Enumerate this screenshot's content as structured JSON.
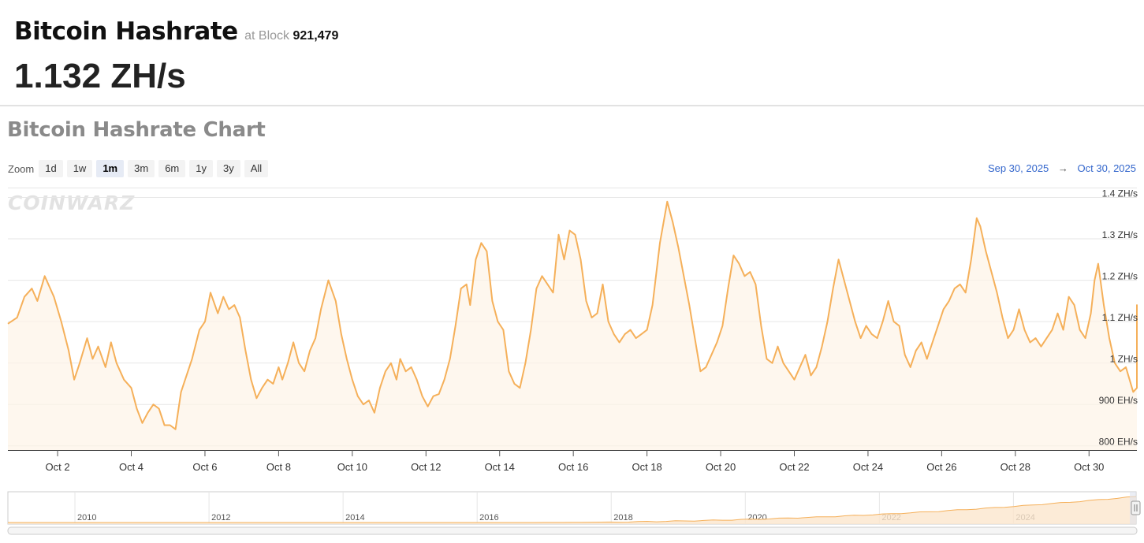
{
  "header": {
    "title": "Bitcoin Hashrate",
    "at_block_label": "at Block",
    "block_number": "921,479",
    "current_value": "1.132 ZH/s"
  },
  "chart_title": "Bitcoin Hashrate Chart",
  "zoom": {
    "label": "Zoom",
    "buttons": [
      "1d",
      "1w",
      "1m",
      "3m",
      "6m",
      "1y",
      "3y",
      "All"
    ],
    "active": "1m"
  },
  "date_range": {
    "from": "Sep 30, 2025",
    "arrow": "→",
    "to": "Oct 30, 2025"
  },
  "watermark": "COINWARZ",
  "colors": {
    "line": "#f5b05a",
    "fill": "#fdf3e7",
    "grid": "#e6e6e6",
    "range_text": "#3366cc"
  },
  "chart_data": {
    "type": "area",
    "title": "Bitcoin Hashrate Chart",
    "y_unit_labels": [
      "800 EH/s",
      "900 EH/s",
      "1 ZH/s",
      "1.1 ZH/s",
      "1.2 ZH/s",
      "1.3 ZH/s",
      "1.4 ZH/s"
    ],
    "y_ticks": [
      800,
      900,
      1000,
      1100,
      1200,
      1300,
      1400
    ],
    "ylim": [
      790,
      1420
    ],
    "x_labels": [
      "Oct 2",
      "Oct 4",
      "Oct 6",
      "Oct 8",
      "Oct 10",
      "Oct 12",
      "Oct 14",
      "Oct 16",
      "Oct 18",
      "Oct 20",
      "Oct 22",
      "Oct 24",
      "Oct 26",
      "Oct 28",
      "Oct 30"
    ],
    "x_label_days": [
      2,
      4,
      6,
      8,
      10,
      12,
      14,
      16,
      18,
      20,
      22,
      24,
      26,
      28,
      30
    ],
    "xlim_days": [
      0.65,
      31.3
    ],
    "series": [
      {
        "points": [
          [
            0.65,
            1095
          ],
          [
            0.9,
            1110
          ],
          [
            1.1,
            1160
          ],
          [
            1.3,
            1180
          ],
          [
            1.45,
            1150
          ],
          [
            1.65,
            1210
          ],
          [
            1.9,
            1160
          ],
          [
            2.1,
            1100
          ],
          [
            2.3,
            1030
          ],
          [
            2.45,
            960
          ],
          [
            2.6,
            1000
          ],
          [
            2.8,
            1060
          ],
          [
            2.95,
            1010
          ],
          [
            3.1,
            1040
          ],
          [
            3.3,
            990
          ],
          [
            3.45,
            1050
          ],
          [
            3.6,
            1000
          ],
          [
            3.8,
            960
          ],
          [
            4.0,
            940
          ],
          [
            4.15,
            890
          ],
          [
            4.3,
            855
          ],
          [
            4.45,
            880
          ],
          [
            4.6,
            900
          ],
          [
            4.75,
            890
          ],
          [
            4.9,
            850
          ],
          [
            5.05,
            850
          ],
          [
            5.2,
            840
          ],
          [
            5.35,
            930
          ],
          [
            5.5,
            970
          ],
          [
            5.65,
            1010
          ],
          [
            5.85,
            1080
          ],
          [
            6.0,
            1100
          ],
          [
            6.15,
            1170
          ],
          [
            6.35,
            1120
          ],
          [
            6.5,
            1160
          ],
          [
            6.65,
            1130
          ],
          [
            6.8,
            1140
          ],
          [
            6.95,
            1110
          ],
          [
            7.1,
            1030
          ],
          [
            7.25,
            960
          ],
          [
            7.4,
            915
          ],
          [
            7.55,
            940
          ],
          [
            7.7,
            960
          ],
          [
            7.85,
            950
          ],
          [
            8.0,
            990
          ],
          [
            8.1,
            960
          ],
          [
            8.25,
            1000
          ],
          [
            8.4,
            1050
          ],
          [
            8.55,
            1000
          ],
          [
            8.7,
            980
          ],
          [
            8.85,
            1030
          ],
          [
            9.0,
            1060
          ],
          [
            9.15,
            1130
          ],
          [
            9.35,
            1200
          ],
          [
            9.55,
            1150
          ],
          [
            9.7,
            1070
          ],
          [
            9.85,
            1010
          ],
          [
            10.0,
            960
          ],
          [
            10.15,
            920
          ],
          [
            10.3,
            900
          ],
          [
            10.45,
            910
          ],
          [
            10.6,
            880
          ],
          [
            10.75,
            940
          ],
          [
            10.9,
            980
          ],
          [
            11.05,
            1000
          ],
          [
            11.2,
            960
          ],
          [
            11.3,
            1010
          ],
          [
            11.45,
            980
          ],
          [
            11.6,
            990
          ],
          [
            11.75,
            960
          ],
          [
            11.9,
            920
          ],
          [
            12.05,
            895
          ],
          [
            12.2,
            920
          ],
          [
            12.35,
            925
          ],
          [
            12.5,
            960
          ],
          [
            12.65,
            1010
          ],
          [
            12.8,
            1090
          ],
          [
            12.95,
            1180
          ],
          [
            13.1,
            1190
          ],
          [
            13.2,
            1140
          ],
          [
            13.35,
            1250
          ],
          [
            13.5,
            1290
          ],
          [
            13.65,
            1270
          ],
          [
            13.8,
            1150
          ],
          [
            13.95,
            1100
          ],
          [
            14.1,
            1080
          ],
          [
            14.25,
            980
          ],
          [
            14.4,
            950
          ],
          [
            14.55,
            940
          ],
          [
            14.7,
            1000
          ],
          [
            14.85,
            1080
          ],
          [
            15.0,
            1180
          ],
          [
            15.15,
            1210
          ],
          [
            15.3,
            1190
          ],
          [
            15.45,
            1170
          ],
          [
            15.6,
            1310
          ],
          [
            15.75,
            1250
          ],
          [
            15.9,
            1320
          ],
          [
            16.05,
            1310
          ],
          [
            16.2,
            1250
          ],
          [
            16.35,
            1150
          ],
          [
            16.5,
            1110
          ],
          [
            16.65,
            1120
          ],
          [
            16.8,
            1190
          ],
          [
            16.95,
            1100
          ],
          [
            17.1,
            1070
          ],
          [
            17.25,
            1050
          ],
          [
            17.4,
            1070
          ],
          [
            17.55,
            1080
          ],
          [
            17.7,
            1060
          ],
          [
            17.85,
            1070
          ],
          [
            18.0,
            1080
          ],
          [
            18.15,
            1140
          ],
          [
            18.35,
            1290
          ],
          [
            18.55,
            1390
          ],
          [
            18.7,
            1340
          ],
          [
            18.85,
            1280
          ],
          [
            19.0,
            1210
          ],
          [
            19.15,
            1140
          ],
          [
            19.3,
            1060
          ],
          [
            19.45,
            980
          ],
          [
            19.6,
            990
          ],
          [
            19.75,
            1020
          ],
          [
            19.9,
            1050
          ],
          [
            20.05,
            1090
          ],
          [
            20.2,
            1180
          ],
          [
            20.35,
            1260
          ],
          [
            20.5,
            1240
          ],
          [
            20.65,
            1210
          ],
          [
            20.8,
            1220
          ],
          [
            20.95,
            1190
          ],
          [
            21.1,
            1090
          ],
          [
            21.25,
            1010
          ],
          [
            21.4,
            1000
          ],
          [
            21.55,
            1040
          ],
          [
            21.7,
            1000
          ],
          [
            21.85,
            980
          ],
          [
            22.0,
            960
          ],
          [
            22.15,
            990
          ],
          [
            22.3,
            1020
          ],
          [
            22.45,
            970
          ],
          [
            22.6,
            990
          ],
          [
            22.75,
            1040
          ],
          [
            22.9,
            1100
          ],
          [
            23.05,
            1180
          ],
          [
            23.2,
            1250
          ],
          [
            23.35,
            1200
          ],
          [
            23.5,
            1150
          ],
          [
            23.65,
            1100
          ],
          [
            23.8,
            1060
          ],
          [
            23.95,
            1090
          ],
          [
            24.1,
            1070
          ],
          [
            24.25,
            1060
          ],
          [
            24.4,
            1100
          ],
          [
            24.55,
            1150
          ],
          [
            24.7,
            1100
          ],
          [
            24.85,
            1090
          ],
          [
            25.0,
            1020
          ],
          [
            25.15,
            990
          ],
          [
            25.3,
            1030
          ],
          [
            25.45,
            1050
          ],
          [
            25.6,
            1010
          ],
          [
            25.75,
            1050
          ],
          [
            25.9,
            1090
          ],
          [
            26.05,
            1130
          ],
          [
            26.2,
            1150
          ],
          [
            26.35,
            1180
          ],
          [
            26.5,
            1190
          ],
          [
            26.65,
            1170
          ],
          [
            26.8,
            1250
          ],
          [
            26.95,
            1350
          ],
          [
            27.05,
            1330
          ],
          [
            27.2,
            1270
          ],
          [
            27.35,
            1220
          ],
          [
            27.5,
            1170
          ],
          [
            27.65,
            1110
          ],
          [
            27.8,
            1060
          ],
          [
            27.95,
            1080
          ],
          [
            28.1,
            1130
          ],
          [
            28.25,
            1080
          ],
          [
            28.4,
            1050
          ],
          [
            28.55,
            1060
          ],
          [
            28.7,
            1040
          ],
          [
            28.85,
            1060
          ],
          [
            29.0,
            1080
          ],
          [
            29.15,
            1120
          ],
          [
            29.3,
            1080
          ],
          [
            29.45,
            1160
          ],
          [
            29.6,
            1140
          ],
          [
            29.75,
            1080
          ],
          [
            29.9,
            1060
          ],
          [
            30.05,
            1120
          ],
          [
            30.15,
            1200
          ],
          [
            30.25,
            1240
          ],
          [
            30.4,
            1140
          ],
          [
            30.55,
            1060
          ],
          [
            30.7,
            1000
          ],
          [
            30.85,
            980
          ],
          [
            31.0,
            990
          ],
          [
            31.1,
            960
          ],
          [
            31.2,
            930
          ],
          [
            31.35,
            940
          ],
          [
            31.5,
            1000
          ],
          [
            31.65,
            1050
          ],
          [
            31.8,
            1110
          ],
          [
            31.9,
            1140
          ],
          [
            31.95,
            1110
          ],
          [
            32.05,
            1100
          ]
        ]
      }
    ]
  },
  "navigator": {
    "year_labels": [
      "2010",
      "2012",
      "2014",
      "2016",
      "2018",
      "2020",
      "2022",
      "2024"
    ],
    "years": [
      2010,
      2012,
      2014,
      2016,
      2018,
      2020,
      2022,
      2024
    ],
    "xlim_years": [
      2009.0,
      2025.83
    ]
  }
}
